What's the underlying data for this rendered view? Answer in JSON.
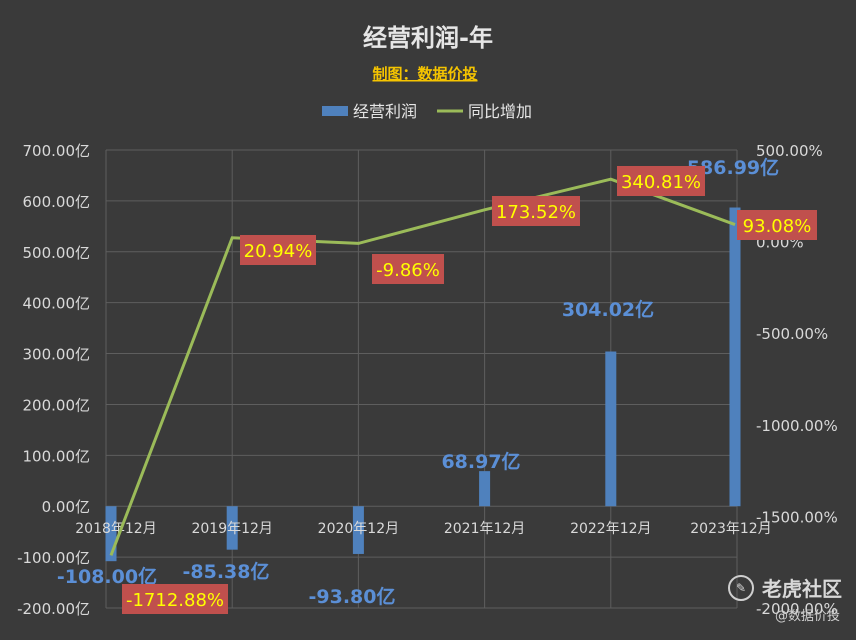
{
  "chart_data": {
    "type": "bar+line",
    "title": "经营利润-年",
    "subtitle": "制图：数据价投",
    "categories": [
      "2018年12月",
      "2019年12月",
      "2020年12月",
      "2021年12月",
      "2022年12月",
      "2023年12月"
    ],
    "series": [
      {
        "name": "经营利润",
        "type": "bar",
        "axis": "left",
        "values": [
          -108.0,
          -85.38,
          -93.8,
          68.97,
          304.02,
          586.99
        ],
        "labels": [
          "-108.00亿",
          "-85.38亿",
          "-93.80亿",
          "68.97亿",
          "304.02亿",
          "586.99亿"
        ],
        "color": "#4f81bd"
      },
      {
        "name": "同比增加",
        "type": "line",
        "axis": "right",
        "values": [
          -1712.88,
          20.94,
          -9.86,
          173.52,
          340.81,
          93.08
        ],
        "labels": [
          "-1712.88%",
          "20.94%",
          "-9.86%",
          "173.52%",
          "340.81%",
          "93.08%"
        ],
        "color": "#9bbb59"
      }
    ],
    "left_axis": {
      "ylim": [
        -200,
        700
      ],
      "ticks": [
        -200,
        -100,
        0,
        100,
        200,
        300,
        400,
        500,
        600,
        700
      ],
      "tick_labels": [
        "-200.00亿",
        "-100.00亿",
        "0.00亿",
        "100.00亿",
        "200.00亿",
        "300.00亿",
        "400.00亿",
        "500.00亿",
        "600.00亿",
        "700.00亿"
      ]
    },
    "right_axis": {
      "ylim": [
        -2000,
        500
      ],
      "ticks": [
        -2000,
        -1500,
        -1000,
        -500,
        0,
        500
      ],
      "tick_labels": [
        "-2000.00%",
        "-1500.00%",
        "-1000.00%",
        "-500.00%",
        "0.00%",
        "500.00%"
      ]
    },
    "legend_position": "top",
    "grid": true
  },
  "watermark": {
    "brand": "老虎社区",
    "handle": "@数据价投"
  },
  "colors": {
    "background": "#3a3a3a",
    "bar": "#4f81bd",
    "line": "#9bbb59",
    "label_box": "#c0504d",
    "label_text": "#ffff00",
    "subtitle": "#f5c400"
  }
}
